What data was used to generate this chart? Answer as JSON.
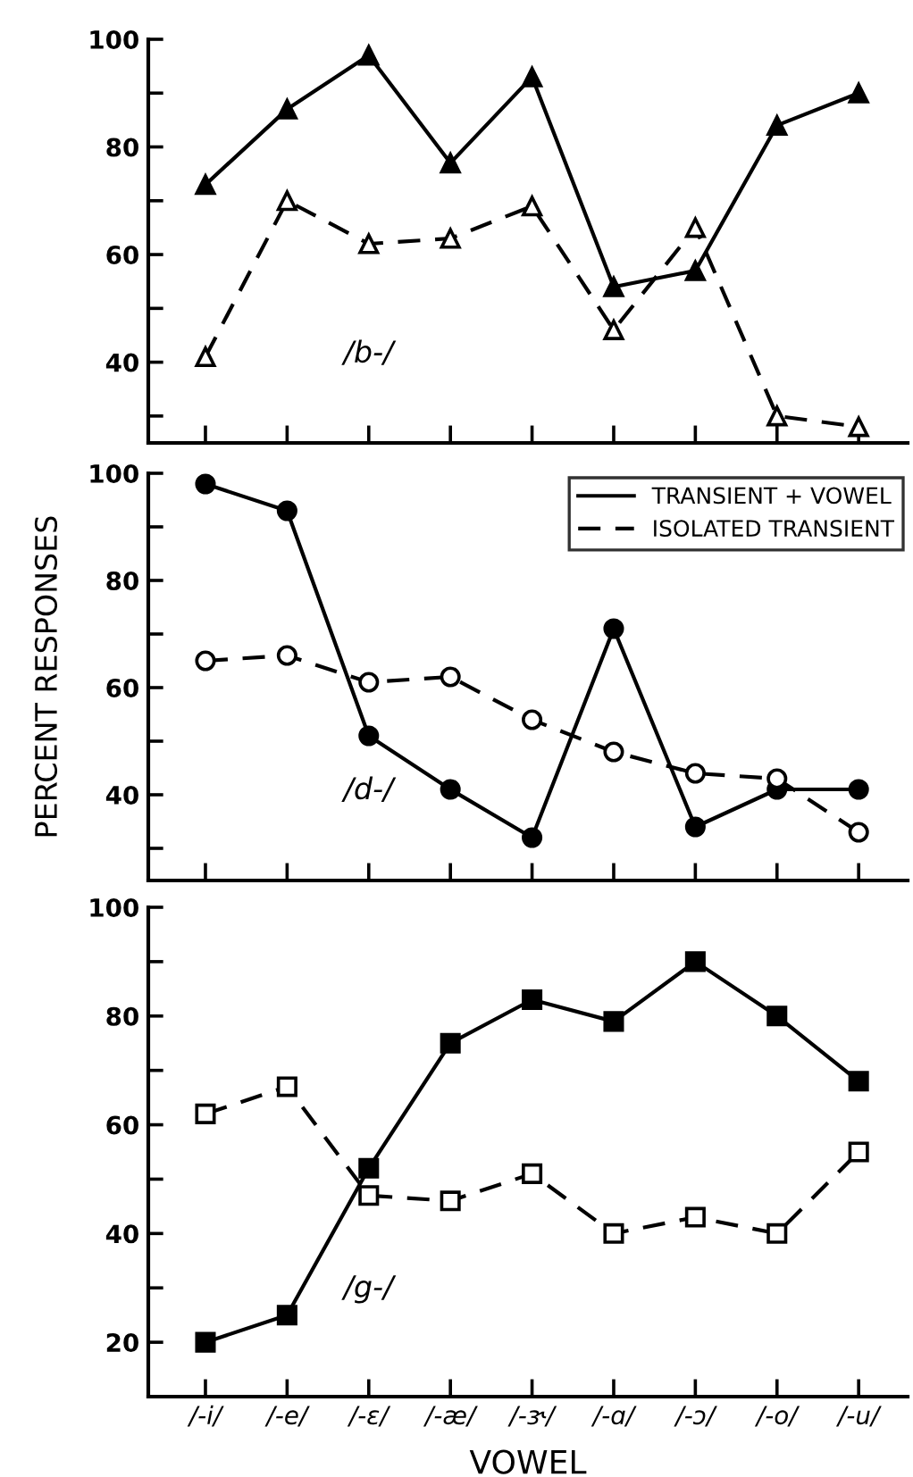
{
  "chart_data": [
    {
      "type": "line",
      "categories": [
        null,
        null,
        null,
        null,
        null,
        null,
        null,
        null,
        null
      ],
      "series": [
        {
          "color": "#000000",
          "marker": "triangle",
          "line_style": "solid",
          "values": [
            73,
            87,
            97,
            77,
            93,
            54,
            57,
            84,
            90
          ]
        },
        {
          "color": "#000000",
          "marker": "triangle",
          "line_style": "dashed",
          "values": [
            41,
            70,
            62,
            63,
            69,
            46,
            65,
            30,
            28
          ]
        }
      ],
      "ylim": [
        25,
        100
      ],
      "yticks": [
        {
          "value": 30,
          "label": null
        },
        40,
        {
          "value": 50,
          "label": null
        },
        60,
        {
          "value": 70,
          "label": null
        },
        80,
        {
          "value": 90,
          "label": null
        },
        100
      ],
      "annotations": [
        "/b-/"
      ],
      "tick_labels": "y",
      "grid": false,
      "legend": false
    },
    {
      "type": "line",
      "categories": [
        null,
        null,
        null,
        null,
        null,
        null,
        null,
        null,
        null
      ],
      "series": [
        {
          "name": "TRANSIENT + VOWEL",
          "color": "#000000",
          "marker": "circle",
          "line_style": "solid",
          "values": [
            98,
            93,
            51,
            41,
            32,
            71,
            34,
            41,
            41
          ]
        },
        {
          "name": "ISOLATED TRANSIENT",
          "color": "#000000",
          "marker": "circle",
          "line_style": "dashed",
          "values": [
            65,
            66,
            61,
            62,
            54,
            48,
            44,
            43,
            33
          ]
        }
      ],
      "ylim": [
        24,
        100
      ],
      "yticks": [
        {
          "value": 30,
          "label": null
        },
        40,
        {
          "value": 50,
          "label": null
        },
        60,
        {
          "value": 70,
          "label": null
        },
        80,
        {
          "value": 90,
          "label": null
        },
        100
      ],
      "ylabel": "PERCENT RESPONSES",
      "annotations": [
        "/d-/"
      ],
      "tick_labels": "y",
      "grid": false,
      "legend": "top right"
    },
    {
      "type": "line",
      "categories": [
        "/-i/",
        "/-e/",
        "/-ɛ/",
        "/-æ/",
        "/-ɝ/",
        "/-ɑ/",
        "/-ɔ/",
        "/-o/",
        "/-u/"
      ],
      "series": [
        {
          "color": "#000000",
          "marker": "square",
          "line_style": "solid",
          "values": [
            20,
            25,
            52,
            75,
            83,
            79,
            90,
            80,
            68
          ]
        },
        {
          "color": "#000000",
          "marker": "square",
          "line_style": "dashed",
          "values": [
            62,
            67,
            47,
            46,
            51,
            40,
            43,
            40,
            55
          ]
        }
      ],
      "ylim": [
        10,
        100
      ],
      "yticks": [
        20,
        {
          "value": 30,
          "label": null
        },
        40,
        {
          "value": 50,
          "label": null
        },
        60,
        {
          "value": 70,
          "label": null
        },
        80,
        {
          "value": 90,
          "label": null
        },
        100
      ],
      "xlabel": "VOWEL",
      "annotations": [
        "/g-/"
      ],
      "grid": false,
      "legend": false
    }
  ]
}
